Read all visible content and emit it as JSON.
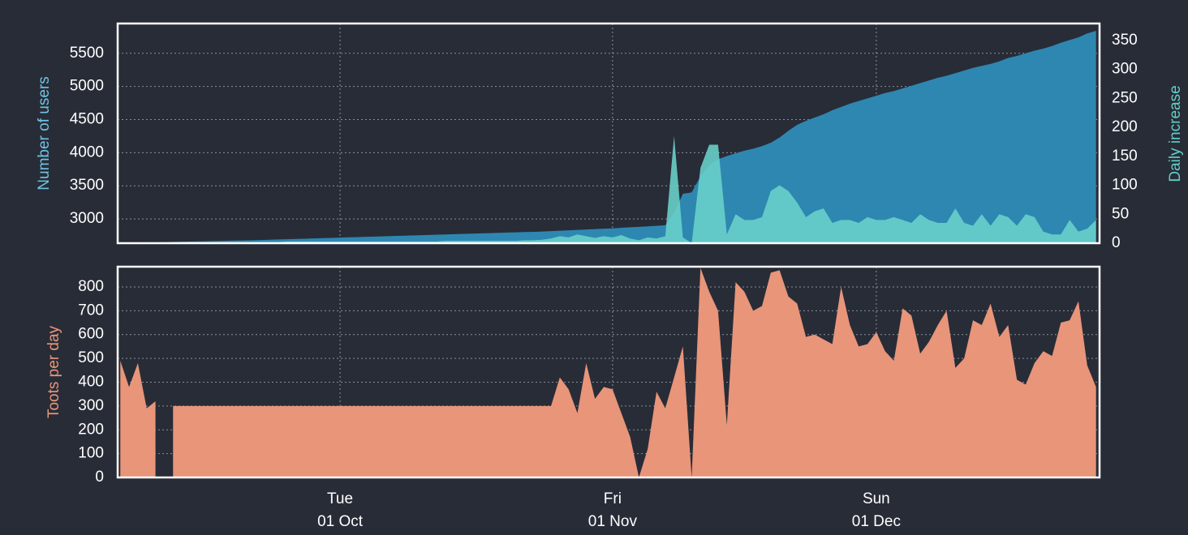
{
  "chart_data": [
    {
      "type": "area",
      "ylabel": "Number of users",
      "ylabel_color": "#6fc3e3",
      "y2label": "Daily increase",
      "y2label_color": "#5fd0c8",
      "x": [
        "06 Sep",
        "07 Sep",
        "08 Sep",
        "09 Sep",
        "10 Sep",
        "11 Sep",
        "12 Sep",
        "13 Sep",
        "14 Sep",
        "15 Sep",
        "16 Sep",
        "17 Sep",
        "18 Sep",
        "19 Sep",
        "20 Sep",
        "21 Sep",
        "22 Sep",
        "23 Sep",
        "24 Sep",
        "25 Sep",
        "26 Sep",
        "27 Sep",
        "28 Sep",
        "29 Sep",
        "30 Sep",
        "01 Oct",
        "02 Oct",
        "03 Oct",
        "04 Oct",
        "05 Oct",
        "06 Oct",
        "07 Oct",
        "08 Oct",
        "09 Oct",
        "10 Oct",
        "11 Oct",
        "12 Oct",
        "13 Oct",
        "14 Oct",
        "15 Oct",
        "16 Oct",
        "17 Oct",
        "18 Oct",
        "19 Oct",
        "20 Oct",
        "21 Oct",
        "22 Oct",
        "23 Oct",
        "24 Oct",
        "25 Oct",
        "26 Oct",
        "27 Oct",
        "28 Oct",
        "29 Oct",
        "30 Oct",
        "31 Oct",
        "01 Nov",
        "02 Nov",
        "03 Nov",
        "04 Nov",
        "05 Nov",
        "06 Nov",
        "07 Nov",
        "08 Nov",
        "09 Nov",
        "10 Nov",
        "11 Nov",
        "12 Nov",
        "13 Nov",
        "14 Nov",
        "15 Nov",
        "16 Nov",
        "17 Nov",
        "18 Nov",
        "19 Nov",
        "20 Nov",
        "21 Nov",
        "22 Nov",
        "23 Nov",
        "24 Nov",
        "25 Nov",
        "26 Nov",
        "27 Nov",
        "28 Nov",
        "29 Nov",
        "30 Nov",
        "01 Dec",
        "02 Dec",
        "03 Dec",
        "04 Dec",
        "05 Dec",
        "06 Dec",
        "07 Dec",
        "08 Dec",
        "09 Dec",
        "10 Dec",
        "11 Dec",
        "12 Dec",
        "13 Dec",
        "14 Dec",
        "15 Dec",
        "16 Dec",
        "17 Dec",
        "18 Dec",
        "19 Dec",
        "20 Dec",
        "21 Dec",
        "22 Dec",
        "23 Dec",
        "24 Dec",
        "25 Dec",
        "26 Dec"
      ],
      "xticks": [
        "01 Oct",
        "01 Nov",
        "01 Dec"
      ],
      "ylim": [
        2634,
        5950
      ],
      "yticks": [
        3000,
        3500,
        4000,
        4500,
        5000,
        5500
      ],
      "y2lim": [
        0,
        379
      ],
      "y2ticks": [
        0,
        50,
        100,
        150,
        200,
        250,
        300,
        350
      ],
      "grid": true,
      "series": [
        {
          "name": "Number of users",
          "color": "#2e87b1",
          "axis": "y",
          "opacity": 1,
          "values": [
            2640,
            2642,
            2644,
            2646,
            2648,
            2650,
            2652,
            2655,
            2658,
            2661,
            2664,
            2667,
            2670,
            2673,
            2676,
            2679,
            2682,
            2686,
            2690,
            2694,
            2698,
            2702,
            2706,
            2710,
            2714,
            2718,
            2722,
            2726,
            2730,
            2734,
            2738,
            2742,
            2746,
            2750,
            2754,
            2758,
            2762,
            2766,
            2770,
            2774,
            2778,
            2782,
            2786,
            2790,
            2794,
            2798,
            2802,
            2806,
            2810,
            2816,
            2822,
            2828,
            2834,
            2840,
            2846,
            2852,
            2858,
            2866,
            2874,
            2880,
            2888,
            2896,
            2905,
            3090,
            3380,
            3400,
            3640,
            3810,
            3900,
            3950,
            3990,
            4030,
            4060,
            4100,
            4150,
            4230,
            4330,
            4420,
            4480,
            4530,
            4580,
            4640,
            4690,
            4740,
            4780,
            4820,
            4860,
            4900,
            4930,
            4970,
            5010,
            5050,
            5090,
            5130,
            5160,
            5200,
            5240,
            5280,
            5310,
            5340,
            5380,
            5430,
            5460,
            5500,
            5540,
            5570,
            5610,
            5660,
            5700,
            5740,
            5800,
            5840
          ]
        },
        {
          "name": "Daily increase",
          "color": "#6ad3cb",
          "axis": "y2",
          "opacity": 0.88,
          "values": [
            1,
            1,
            1,
            1,
            1,
            1,
            2,
            2,
            2,
            2,
            2,
            2,
            2,
            2,
            2,
            2,
            2,
            2,
            2,
            3,
            3,
            3,
            3,
            3,
            3,
            3,
            3,
            3,
            3,
            3,
            3,
            3,
            3,
            3,
            3,
            3,
            3,
            4,
            4,
            4,
            4,
            4,
            4,
            4,
            4,
            4,
            5,
            5,
            6,
            8,
            12,
            10,
            15,
            12,
            9,
            12,
            10,
            14,
            8,
            5,
            10,
            8,
            12,
            185,
            10,
            0,
            130,
            170,
            170,
            15,
            50,
            40,
            40,
            45,
            90,
            100,
            90,
            70,
            45,
            55,
            60,
            35,
            40,
            40,
            35,
            45,
            40,
            40,
            45,
            40,
            35,
            50,
            40,
            35,
            35,
            60,
            35,
            30,
            50,
            30,
            50,
            45,
            30,
            50,
            45,
            20,
            15,
            15,
            40,
            20,
            25,
            40
          ]
        }
      ]
    },
    {
      "type": "area",
      "ylabel": "Toots per day",
      "ylabel_color": "#e8967a",
      "x": [
        "06 Sep",
        "07 Sep",
        "08 Sep",
        "09 Sep",
        "10 Sep",
        "11 Sep",
        "12 Sep",
        "13 Sep",
        "14 Sep",
        "15 Sep",
        "16 Sep",
        "17 Sep",
        "18 Sep",
        "19 Sep",
        "20 Sep",
        "21 Sep",
        "22 Sep",
        "23 Sep",
        "24 Sep",
        "25 Sep",
        "26 Sep",
        "27 Sep",
        "28 Sep",
        "29 Sep",
        "30 Sep",
        "01 Oct",
        "02 Oct",
        "03 Oct",
        "04 Oct",
        "05 Oct",
        "06 Oct",
        "07 Oct",
        "08 Oct",
        "09 Oct",
        "10 Oct",
        "11 Oct",
        "12 Oct",
        "13 Oct",
        "14 Oct",
        "15 Oct",
        "16 Oct",
        "17 Oct",
        "18 Oct",
        "19 Oct",
        "20 Oct",
        "21 Oct",
        "22 Oct",
        "23 Oct",
        "24 Oct",
        "25 Oct",
        "26 Oct",
        "27 Oct",
        "28 Oct",
        "29 Oct",
        "30 Oct",
        "31 Oct",
        "01 Nov",
        "02 Nov",
        "03 Nov",
        "04 Nov",
        "05 Nov",
        "06 Nov",
        "07 Nov",
        "08 Nov",
        "09 Nov",
        "10 Nov",
        "11 Nov",
        "12 Nov",
        "13 Nov",
        "14 Nov",
        "15 Nov",
        "16 Nov",
        "17 Nov",
        "18 Nov",
        "19 Nov",
        "20 Nov",
        "21 Nov",
        "22 Nov",
        "23 Nov",
        "24 Nov",
        "25 Nov",
        "26 Nov",
        "27 Nov",
        "28 Nov",
        "29 Nov",
        "30 Nov",
        "01 Dec",
        "02 Dec",
        "03 Dec",
        "04 Dec",
        "05 Dec",
        "06 Dec",
        "07 Dec",
        "08 Dec",
        "09 Dec",
        "10 Dec",
        "11 Dec",
        "12 Dec",
        "13 Dec",
        "14 Dec",
        "15 Dec",
        "16 Dec",
        "17 Dec",
        "18 Dec",
        "19 Dec",
        "20 Dec",
        "21 Dec",
        "22 Dec",
        "23 Dec",
        "24 Dec",
        "25 Dec",
        "26 Dec"
      ],
      "xticks": [
        "01 Oct",
        "01 Nov",
        "01 Dec"
      ],
      "xtick_weekdays": [
        "Tue",
        "Fri",
        "Sun"
      ],
      "ylim": [
        0,
        885
      ],
      "yticks": [
        0,
        100,
        200,
        300,
        400,
        500,
        600,
        700,
        800
      ],
      "grid": true,
      "series": [
        {
          "name": "Toots per day",
          "color": "#e8957a",
          "axis": "y",
          "opacity": 1,
          "values": [
            490,
            380,
            480,
            290,
            320,
            null,
            300,
            300,
            300,
            300,
            300,
            300,
            300,
            300,
            300,
            300,
            300,
            300,
            300,
            300,
            300,
            300,
            300,
            300,
            300,
            300,
            300,
            300,
            300,
            300,
            300,
            300,
            300,
            300,
            300,
            300,
            300,
            300,
            300,
            300,
            300,
            300,
            300,
            300,
            300,
            300,
            300,
            300,
            300,
            300,
            420,
            370,
            270,
            480,
            330,
            380,
            370,
            270,
            170,
            0,
            120,
            360,
            290,
            420,
            550,
            0,
            880,
            780,
            700,
            220,
            820,
            780,
            700,
            720,
            860,
            870,
            760,
            730,
            590,
            600,
            580,
            560,
            800,
            640,
            550,
            560,
            610,
            530,
            490,
            710,
            680,
            520,
            570,
            640,
            700,
            460,
            500,
            660,
            640,
            730,
            590,
            640,
            410,
            390,
            480,
            530,
            510,
            650,
            660,
            740,
            470,
            380
          ]
        }
      ]
    }
  ]
}
